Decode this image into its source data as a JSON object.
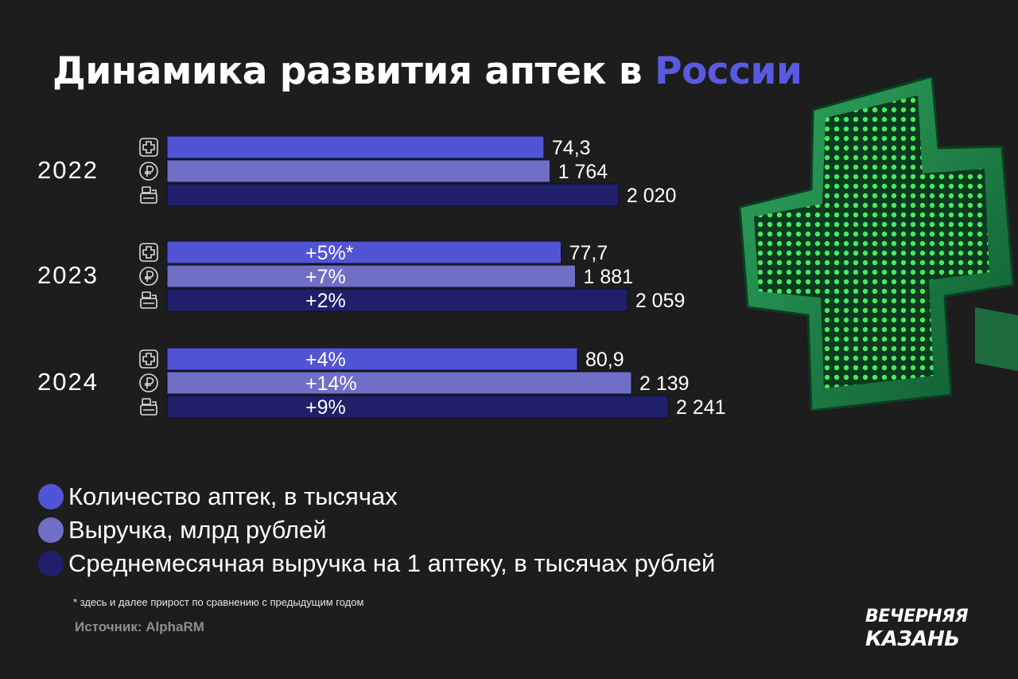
{
  "title": {
    "main": "Динамика развития аптек в",
    "accent": "России"
  },
  "chart_data": {
    "type": "bar",
    "orientation": "horizontal",
    "title": "Динамика развития аптек в России",
    "groups": [
      "2022",
      "2023",
      "2024"
    ],
    "series": [
      {
        "name": "Количество аптек, в  тысячах",
        "color": "#5254d6",
        "icon": "pharmacy-cross-icon",
        "values": [
          74.3,
          77.7,
          80.9
        ],
        "labels": [
          "74,3",
          "77,7",
          "80,9"
        ],
        "growth": [
          "",
          "+5%*",
          "+4%"
        ]
      },
      {
        "name": "Выручка, млрд рублей",
        "color": "#6f6fc6",
        "icon": "ruble-icon",
        "values": [
          1764,
          1881,
          2139
        ],
        "labels": [
          "1 764",
          "1 881",
          "2 139"
        ],
        "growth": [
          "",
          "+7%",
          "+14%"
        ]
      },
      {
        "name": "Среднемесячная выручка на 1 аптеку, в тысячах рублей",
        "color": "#1f1f6a",
        "icon": "cash-register-icon",
        "values": [
          2020,
          2059,
          2241
        ],
        "labels": [
          "2 020",
          "2 059",
          "2 241"
        ],
        "growth": [
          "",
          "+2%",
          "+9%"
        ]
      }
    ],
    "grid": false,
    "legend_position": "bottom-left"
  },
  "legend": {
    "items": [
      {
        "label": "Количество аптек, в  тысячах",
        "color": "#5254d6"
      },
      {
        "label": "Выручка, млрд рублей",
        "color": "#6f6fc6"
      },
      {
        "label": "Среднемесячная выручка на 1 аптеку, в тысячах рублей",
        "color": "#1f1f6a"
      }
    ]
  },
  "footnote": "* здесь и далее прирост по сравнению с предыдущим годом",
  "source": "Источник:  AlphaRM",
  "logo": {
    "line1": "ВЕЧЕРНЯЯ",
    "line2": "КАЗАНЬ"
  },
  "images": {
    "pharmacy_sign": "green-pharmacy-cross-sign"
  }
}
